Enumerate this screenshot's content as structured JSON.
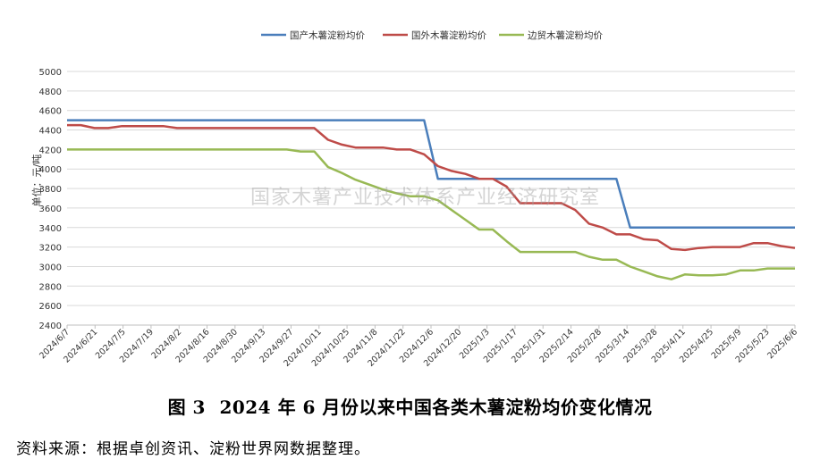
{
  "caption": {
    "fig": "图 3",
    "text": "2024 年 6 月份以来中国各类木薯淀粉均价变化情况"
  },
  "source": "资料来源：根据卓创资讯、淀粉世界网数据整理。",
  "watermark": "国家木薯产业技术体系产业经济研究室",
  "chart_data": {
    "type": "line",
    "ylabel": "单位：元/吨",
    "ylim": [
      2400,
      5000
    ],
    "yticks": [
      2400,
      2600,
      2800,
      3000,
      3200,
      3400,
      3600,
      3800,
      4000,
      4200,
      4400,
      4600,
      4800,
      5000
    ],
    "grid": true,
    "legend": "top-center",
    "xticks": [
      "2024/6/7",
      "2024/6/21",
      "2024/7/5",
      "2024/7/19",
      "2024/8/2",
      "2024/8/16",
      "2024/8/30",
      "2024/9/13",
      "2024/9/27",
      "2024/10/11",
      "2024/10/25",
      "2024/11/8",
      "2024/11/22",
      "2024/12/6",
      "2024/12/20",
      "2025/1/3",
      "2025/1/17",
      "2025/1/31",
      "2025/2/14",
      "2025/2/28",
      "2025/3/14",
      "2025/3/28",
      "2025/4/11",
      "2025/4/25",
      "2025/5/9",
      "2025/5/23",
      "2025/6/6"
    ],
    "series": [
      {
        "name": "国产木薯淀粉均价",
        "color": "#4a7ebb",
        "values": [
          4500,
          4500,
          4500,
          4500,
          4500,
          4500,
          4500,
          4500,
          4500,
          4500,
          4500,
          4500,
          4500,
          4500,
          4500,
          4500,
          4500,
          4500,
          4500,
          4500,
          4500,
          4500,
          4500,
          4500,
          4500,
          4500,
          4500,
          3900,
          3900,
          3900,
          3900,
          3900,
          3900,
          3900,
          3900,
          3900,
          3900,
          3900,
          3900,
          3900,
          3900,
          3400,
          3400,
          3400,
          3400,
          3400,
          3400,
          3400,
          3400,
          3400,
          3400,
          3400,
          3400,
          3400
        ]
      },
      {
        "name": "国外木薯淀粉均价",
        "color": "#be4b48",
        "values": [
          4450,
          4450,
          4420,
          4420,
          4440,
          4440,
          4440,
          4440,
          4420,
          4420,
          4420,
          4420,
          4420,
          4420,
          4420,
          4420,
          4420,
          4420,
          4420,
          4300,
          4250,
          4220,
          4220,
          4220,
          4200,
          4200,
          4150,
          4030,
          3980,
          3950,
          3900,
          3900,
          3820,
          3650,
          3650,
          3650,
          3650,
          3580,
          3440,
          3400,
          3330,
          3330,
          3280,
          3270,
          3180,
          3170,
          3190,
          3200,
          3200,
          3200,
          3240,
          3240,
          3210,
          3190
        ]
      },
      {
        "name": "边贸木薯淀粉均价",
        "color": "#98b954",
        "values": [
          4200,
          4200,
          4200,
          4200,
          4200,
          4200,
          4200,
          4200,
          4200,
          4200,
          4200,
          4200,
          4200,
          4200,
          4200,
          4200,
          4200,
          4180,
          4180,
          4020,
          3960,
          3890,
          3840,
          3790,
          3750,
          3720,
          3720,
          3680,
          3580,
          3480,
          3380,
          3380,
          3260,
          3150,
          3150,
          3150,
          3150,
          3150,
          3100,
          3070,
          3070,
          3000,
          2950,
          2900,
          2870,
          2920,
          2910,
          2910,
          2920,
          2960,
          2960,
          2980,
          2980,
          2980
        ]
      }
    ]
  }
}
